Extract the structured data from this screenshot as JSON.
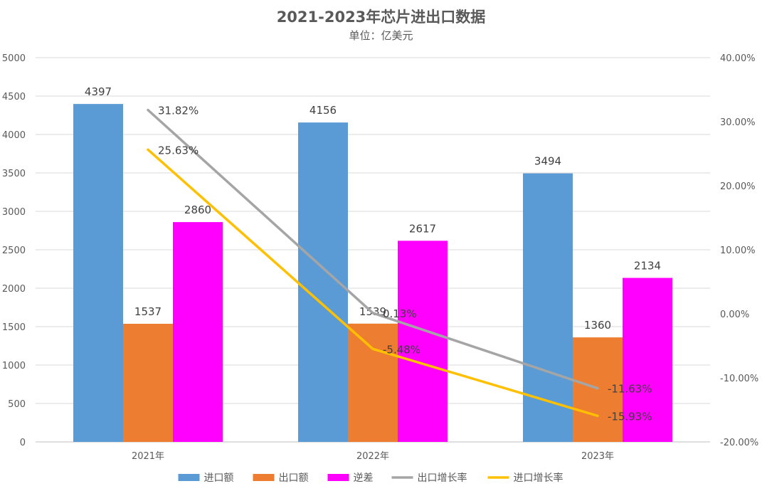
{
  "chart_data": {
    "type": "bar",
    "title": "2021-2023年芯片进出口数据",
    "subtitle": "单位：亿美元",
    "categories": [
      "2021年",
      "2022年",
      "2023年"
    ],
    "series": [
      {
        "name": "进口额",
        "type": "bar",
        "axis": "left",
        "color": "#5B9BD5",
        "values": [
          4397,
          4156,
          3494
        ]
      },
      {
        "name": "出口额",
        "type": "bar",
        "axis": "left",
        "color": "#ED7D31",
        "values": [
          1537,
          1539,
          1360
        ]
      },
      {
        "name": "逆差",
        "type": "bar",
        "axis": "left",
        "color": "#FF00FF",
        "values": [
          2860,
          2617,
          2134
        ]
      },
      {
        "name": "出口增长率",
        "type": "line",
        "axis": "right",
        "color": "#A5A5A5",
        "values": [
          31.82,
          0.13,
          -11.63
        ],
        "labels": [
          "31.82%",
          "0.13%",
          "-11.63%"
        ]
      },
      {
        "name": "进口增长率",
        "type": "line",
        "axis": "right",
        "color": "#FFC000",
        "values": [
          25.63,
          -5.48,
          -15.93
        ],
        "labels": [
          "25.63%",
          "-5.48%",
          "-15.93%"
        ]
      }
    ],
    "y_left": {
      "min": 0,
      "max": 5000,
      "ticks": [
        "0",
        "500",
        "1000",
        "1500",
        "2000",
        "2500",
        "3000",
        "3500",
        "4000",
        "4500",
        "5000"
      ]
    },
    "y_right": {
      "min": -20,
      "max": 40,
      "ticks": [
        "-20.00%",
        "-10.00%",
        "0.00%",
        "10.00%",
        "20.00%",
        "30.00%",
        "40.00%"
      ]
    },
    "grid": true,
    "legend_position": "bottom"
  }
}
